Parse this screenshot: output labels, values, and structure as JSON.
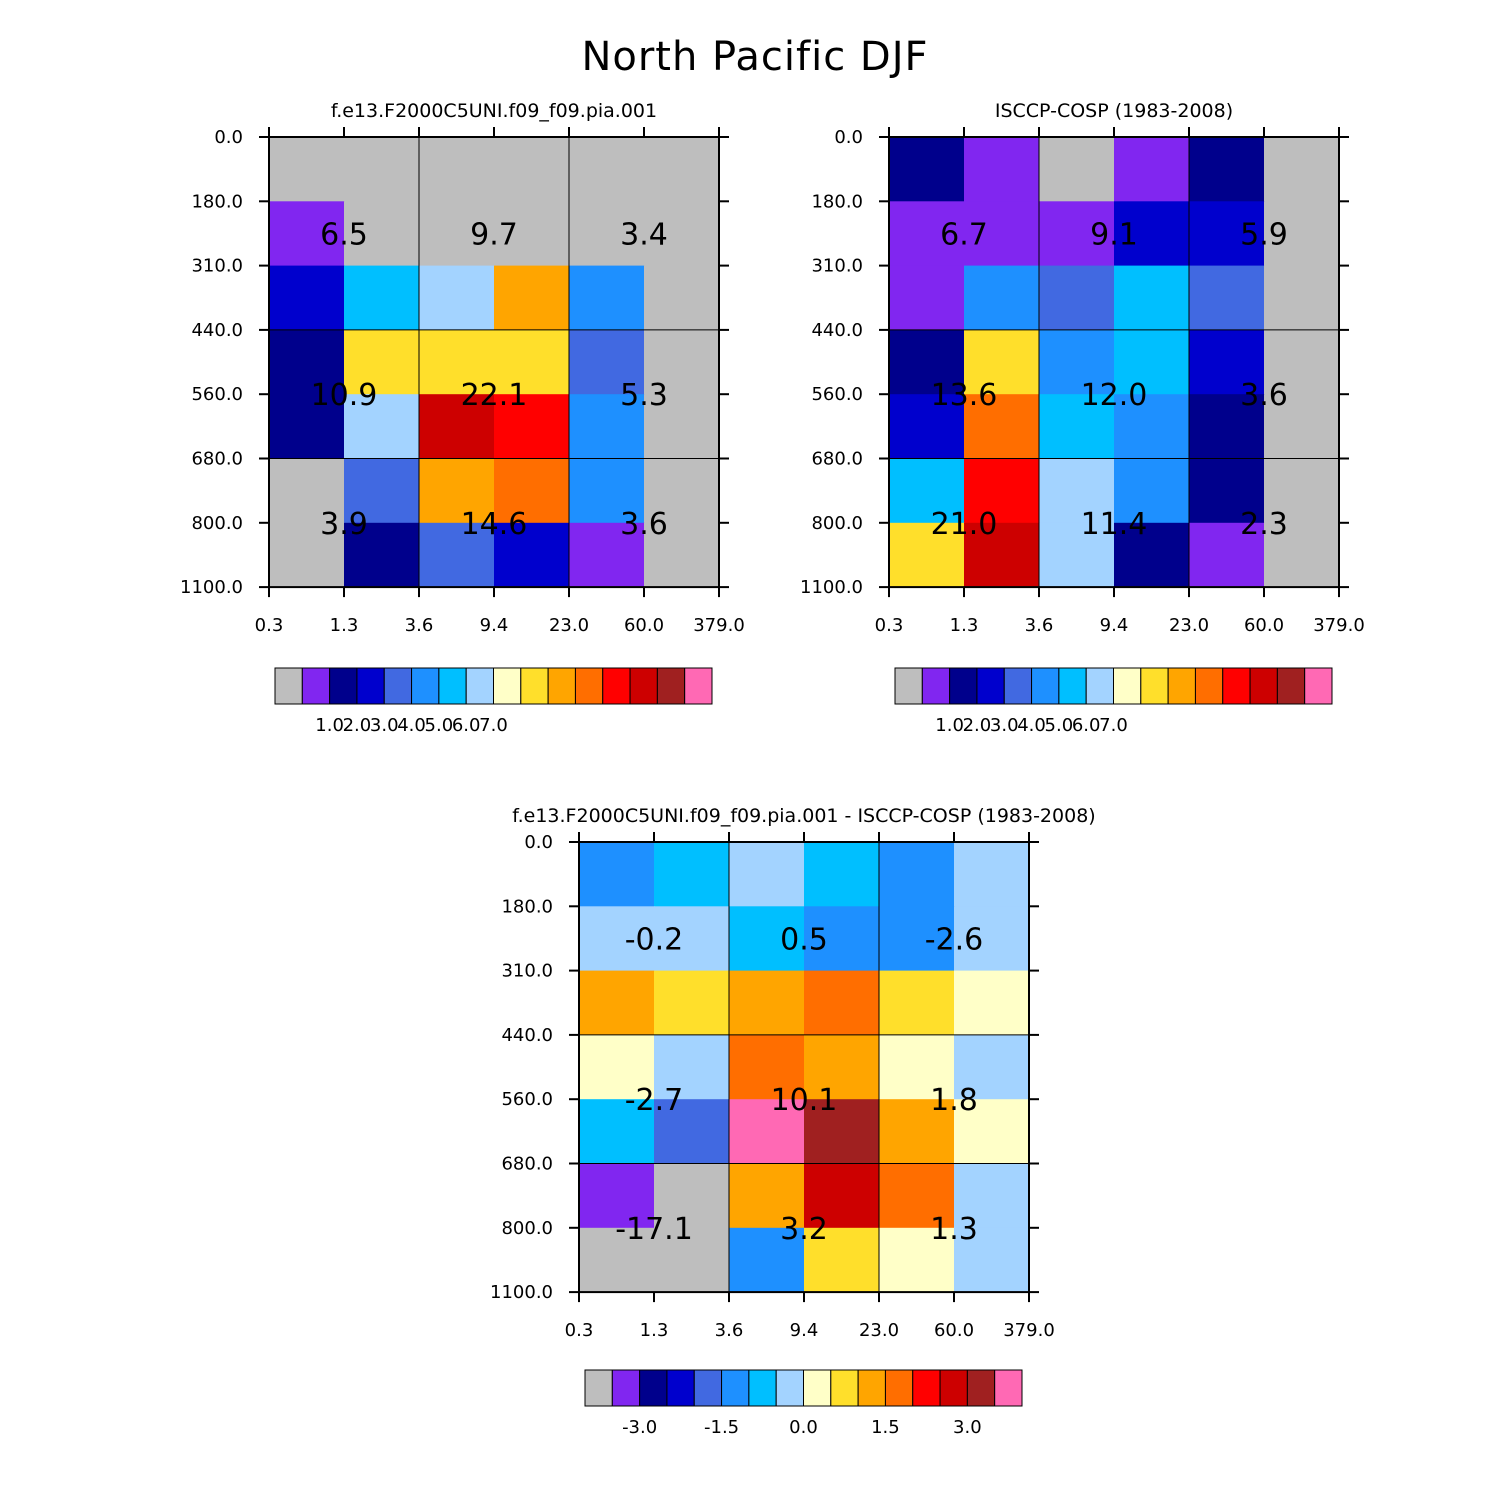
{
  "title": "North Pacific DJF",
  "colors": {
    "gray": "#bebebe",
    "violet": "#8126f0",
    "navy": "#00008c",
    "blue": "#0000cd",
    "royal": "#4169e1",
    "dodger": "#1e90ff",
    "sky": "#00bfff",
    "lightblue": "#a3d3ff",
    "cream": "#ffffc8",
    "yellow": "#ffdf2b",
    "orange": "#ffa500",
    "darkorange": "#ff6e00",
    "red": "#ff0000",
    "crimson": "#cd0000",
    "brown": "#a02020",
    "pink": "#ff69b4"
  },
  "chart_data": [
    {
      "type": "heatmap",
      "title": "f.e13.F2000C5UNI.f09_f09.pia.001",
      "x_ticks": [
        "0.3",
        "1.3",
        "3.6",
        "9.4",
        "23.0",
        "60.0",
        "379.0"
      ],
      "y_ticks": [
        "0.0",
        "180.0",
        "310.0",
        "440.0",
        "560.0",
        "680.0",
        "800.0",
        "1100.0"
      ],
      "cells": [
        [
          "gray",
          "gray",
          "gray",
          "gray",
          "gray",
          "gray"
        ],
        [
          "violet",
          "gray",
          "gray",
          "gray",
          "gray",
          "gray"
        ],
        [
          "blue",
          "sky",
          "lightblue",
          "orange",
          "dodger",
          "gray"
        ],
        [
          "navy",
          "yellow",
          "yellow",
          "yellow",
          "royal",
          "gray"
        ],
        [
          "navy",
          "lightblue",
          "crimson",
          "red",
          "dodger",
          "gray"
        ],
        [
          "gray",
          "royal",
          "orange",
          "darkorange",
          "dodger",
          "gray"
        ],
        [
          "gray",
          "navy",
          "royal",
          "blue",
          "violet",
          "gray"
        ]
      ],
      "block_values": [
        [
          "6.5",
          "9.7",
          "3.4"
        ],
        [
          "10.9",
          "22.1",
          "5.3"
        ],
        [
          "3.9",
          "14.6",
          "3.6"
        ]
      ],
      "colorbar": {
        "colors": [
          "gray",
          "violet",
          "navy",
          "blue",
          "royal",
          "dodger",
          "sky",
          "lightblue",
          "cream",
          "yellow",
          "orange",
          "darkorange",
          "red",
          "crimson",
          "brown",
          "pink"
        ],
        "labels": [
          "1.0",
          "2.0",
          "3.0",
          "4.0",
          "5.0",
          "6.0",
          "7.0"
        ]
      }
    },
    {
      "type": "heatmap",
      "title": "ISCCP-COSP (1983-2008)",
      "x_ticks": [
        "0.3",
        "1.3",
        "3.6",
        "9.4",
        "23.0",
        "60.0",
        "379.0"
      ],
      "y_ticks": [
        "0.0",
        "180.0",
        "310.0",
        "440.0",
        "560.0",
        "680.0",
        "800.0",
        "1100.0"
      ],
      "cells": [
        [
          "navy",
          "violet",
          "gray",
          "violet",
          "navy",
          "gray"
        ],
        [
          "violet",
          "violet",
          "violet",
          "blue",
          "blue",
          "gray"
        ],
        [
          "violet",
          "dodger",
          "royal",
          "sky",
          "royal",
          "gray"
        ],
        [
          "navy",
          "yellow",
          "dodger",
          "sky",
          "blue",
          "gray"
        ],
        [
          "blue",
          "darkorange",
          "sky",
          "dodger",
          "navy",
          "gray"
        ],
        [
          "sky",
          "red",
          "lightblue",
          "dodger",
          "navy",
          "gray"
        ],
        [
          "yellow",
          "crimson",
          "lightblue",
          "navy",
          "violet",
          "gray"
        ]
      ],
      "block_values": [
        [
          "6.7",
          "9.1",
          "5.9"
        ],
        [
          "13.6",
          "12.0",
          "3.6"
        ],
        [
          "21.0",
          "11.4",
          "2.3"
        ]
      ],
      "colorbar": {
        "colors": [
          "gray",
          "violet",
          "navy",
          "blue",
          "royal",
          "dodger",
          "sky",
          "lightblue",
          "cream",
          "yellow",
          "orange",
          "darkorange",
          "red",
          "crimson",
          "brown",
          "pink"
        ],
        "labels": [
          "1.0",
          "2.0",
          "3.0",
          "4.0",
          "5.0",
          "6.0",
          "7.0"
        ]
      }
    },
    {
      "type": "heatmap",
      "title": "f.e13.F2000C5UNI.f09_f09.pia.001 - ISCCP-COSP (1983-2008)",
      "x_ticks": [
        "0.3",
        "1.3",
        "3.6",
        "9.4",
        "23.0",
        "60.0",
        "379.0"
      ],
      "y_ticks": [
        "0.0",
        "180.0",
        "310.0",
        "440.0",
        "560.0",
        "680.0",
        "800.0",
        "1100.0"
      ],
      "cells": [
        [
          "dodger",
          "sky",
          "lightblue",
          "sky",
          "dodger",
          "lightblue"
        ],
        [
          "lightblue",
          "lightblue",
          "sky",
          "dodger",
          "dodger",
          "lightblue"
        ],
        [
          "orange",
          "yellow",
          "orange",
          "darkorange",
          "yellow",
          "cream"
        ],
        [
          "cream",
          "lightblue",
          "darkorange",
          "orange",
          "cream",
          "lightblue"
        ],
        [
          "sky",
          "royal",
          "pink",
          "brown",
          "orange",
          "cream"
        ],
        [
          "violet",
          "gray",
          "orange",
          "crimson",
          "darkorange",
          "lightblue"
        ],
        [
          "gray",
          "gray",
          "dodger",
          "yellow",
          "cream",
          "lightblue"
        ]
      ],
      "block_values": [
        [
          "-0.2",
          "0.5",
          "-2.6"
        ],
        [
          "-2.7",
          "10.1",
          "1.8"
        ],
        [
          "-17.1",
          "3.2",
          "1.3"
        ]
      ],
      "colorbar": {
        "colors": [
          "gray",
          "violet",
          "navy",
          "blue",
          "royal",
          "dodger",
          "sky",
          "lightblue",
          "cream",
          "yellow",
          "orange",
          "darkorange",
          "red",
          "crimson",
          "brown",
          "pink"
        ],
        "labels": [
          "-3.0",
          "-1.5",
          "0.0",
          "1.5",
          "3.0"
        ]
      }
    }
  ]
}
